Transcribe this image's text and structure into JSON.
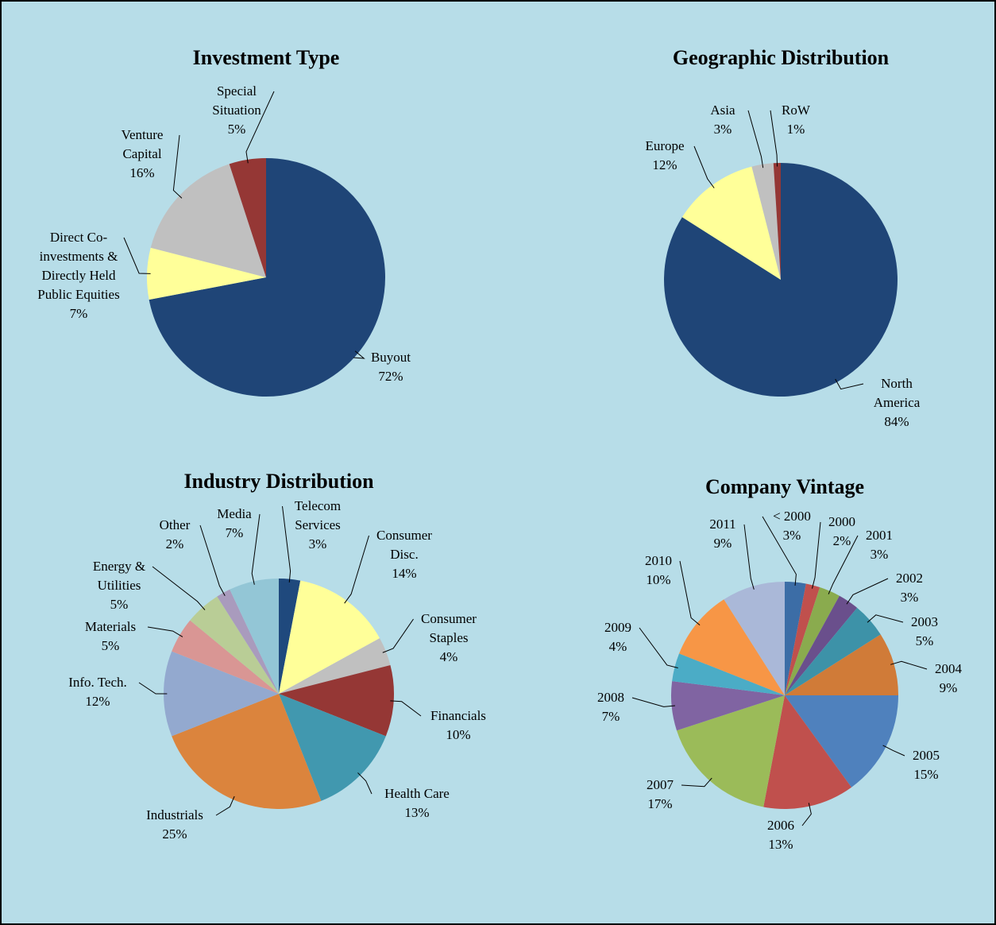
{
  "chart_data": [
    {
      "type": "pie",
      "title": "Investment Type",
      "categories": [
        "Buyout",
        "Direct Co-investments & Directly Held Public Equities",
        "Venture Capital",
        "Special Situation"
      ],
      "values": [
        72,
        7,
        16,
        5
      ],
      "value_labels": [
        "72%",
        "7%",
        "16%",
        "5%"
      ],
      "colors": [
        "#1f4577",
        "#ffff99",
        "#c0c0c0",
        "#953735"
      ]
    },
    {
      "type": "pie",
      "title": "Geographic Distribution",
      "categories": [
        "North America",
        "Europe",
        "Asia",
        "RoW"
      ],
      "values": [
        84,
        12,
        3,
        1
      ],
      "value_labels": [
        "84%",
        "12%",
        "3%",
        "1%"
      ],
      "colors": [
        "#1f4577",
        "#ffff99",
        "#c0c0c0",
        "#953735"
      ]
    },
    {
      "type": "pie",
      "title": "Industry Distribution",
      "categories": [
        "Telecom Services",
        "Consumer Disc.",
        "Consumer Staples",
        "Financials",
        "Health Care",
        "Industrials",
        "Info. Tech.",
        "Materials",
        "Energy & Utilities",
        "Other",
        "Media"
      ],
      "values": [
        3,
        14,
        4,
        10,
        13,
        25,
        12,
        5,
        5,
        2,
        7
      ],
      "value_labels": [
        "3%",
        "14%",
        "4%",
        "10%",
        "13%",
        "25%",
        "12%",
        "5%",
        "5%",
        "2%",
        "7%"
      ],
      "colors": [
        "#1f497d",
        "#ffff99",
        "#c0c0c0",
        "#953735",
        "#4198af",
        "#db843d",
        "#93a9cf",
        "#d99694",
        "#b9cd96",
        "#a99bbd",
        "#93c6d6"
      ]
    },
    {
      "type": "pie",
      "title": "Company Vintage",
      "categories": [
        "< 2000",
        "2000",
        "2001",
        "2002",
        "2003",
        "2004",
        "2005",
        "2006",
        "2007",
        "2008",
        "2009",
        "2010",
        "2011"
      ],
      "values": [
        3,
        2,
        3,
        3,
        5,
        9,
        15,
        13,
        17,
        7,
        4,
        10,
        9
      ],
      "value_labels": [
        "3%",
        "2%",
        "3%",
        "3%",
        "5%",
        "9%",
        "15%",
        "13%",
        "17%",
        "7%",
        "4%",
        "10%",
        "9%"
      ],
      "colors": [
        "#3c6da6",
        "#c0504d",
        "#8aab4e",
        "#6a4f8c",
        "#3d92a8",
        "#d07b38",
        "#4f81bd",
        "#c0504d",
        "#9bbb59",
        "#8064a2",
        "#4bacc6",
        "#f79646",
        "#aab8d8"
      ]
    }
  ]
}
